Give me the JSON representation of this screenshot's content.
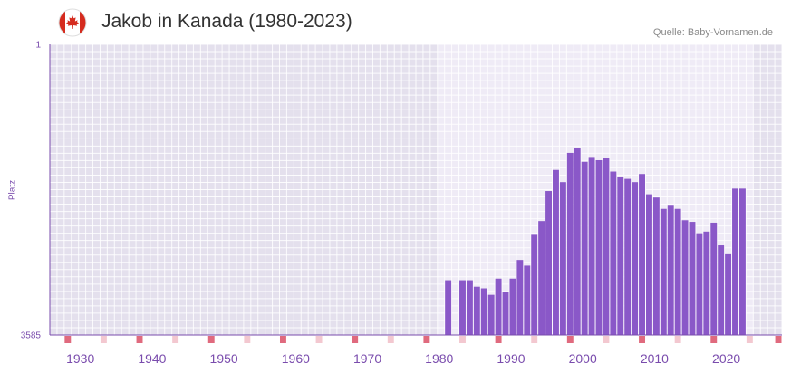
{
  "header": {
    "title": "Jakob in Kanada (1980-2023)",
    "source": "Quelle: Baby-Vornamen.de",
    "flag": "canada-flag"
  },
  "colors": {
    "bar": "#8a58c8",
    "axis": "#7a4cad",
    "tick_text": "#7a4cad",
    "band_dark": "#e4e0ed",
    "band_light": "#efebf6",
    "marker_major": "#e06a7e",
    "marker_minor": "#f3c8d0"
  },
  "chart_data": {
    "type": "bar",
    "title": "Jakob in Kanada (1980-2023)",
    "xlabel": "",
    "ylabel": "Platz",
    "y_inverted": true,
    "ylim": [
      1,
      3585
    ],
    "y_tick_labels": [
      "1",
      "3585"
    ],
    "x_range": [
      1926,
      2027
    ],
    "x_tick_labels": [
      "1930",
      "1940",
      "1950",
      "1960",
      "1970",
      "1980",
      "1990",
      "2000",
      "2010",
      "2020"
    ],
    "x": [
      1981,
      1983,
      1984,
      1985,
      1986,
      1987,
      1988,
      1989,
      1990,
      1991,
      1992,
      1993,
      1994,
      1995,
      1996,
      1997,
      1998,
      1999,
      2000,
      2001,
      2002,
      2003,
      2004,
      2005,
      2006,
      2007,
      2008,
      2009,
      2010,
      2011,
      2012,
      2013,
      2014,
      2015,
      2016,
      2017,
      2018,
      2019,
      2020,
      2021,
      2022
    ],
    "values": [
      2910,
      2910,
      2910,
      2990,
      3010,
      3090,
      2890,
      3050,
      2890,
      2660,
      2730,
      2350,
      2180,
      1810,
      1550,
      1700,
      1340,
      1280,
      1450,
      1390,
      1430,
      1400,
      1570,
      1640,
      1660,
      1700,
      1600,
      1850,
      1890,
      2030,
      1980,
      2030,
      2170,
      2190,
      2330,
      2310,
      2200,
      2480,
      2590,
      1780,
      1780
    ]
  }
}
